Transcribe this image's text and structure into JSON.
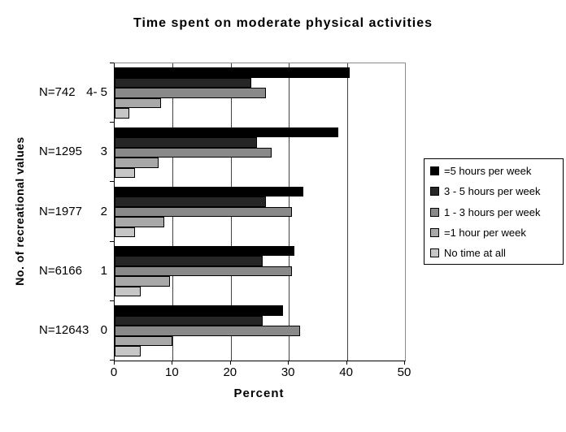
{
  "title": "Time spent on moderate physical activities",
  "chart_data": {
    "type": "bar",
    "orientation": "horizontal",
    "title": "Time spent on moderate physical activities",
    "xlabel": "Percent",
    "ylabel": "No. of recreational values",
    "xlim": [
      0,
      50
    ],
    "xticks": [
      0,
      10,
      20,
      30,
      40,
      50
    ],
    "grid": true,
    "legend_position": "right",
    "categories": [
      "N=742  4- 5",
      "N=1295  3",
      "N=1977  2",
      "N=6166  1",
      "N=12643  0"
    ],
    "category_labels": [
      {
        "n": "N=742",
        "value": "4- 5"
      },
      {
        "n": "N=1295",
        "value": "3"
      },
      {
        "n": "N=1977",
        "value": "2"
      },
      {
        "n": "N=6166",
        "value": "1"
      },
      {
        "n": "N=12643",
        "value": "0"
      }
    ],
    "series": [
      {
        "name": "=5 hours per week",
        "color": "#000000",
        "values": [
          40.5,
          38.5,
          32.5,
          31,
          29
        ]
      },
      {
        "name": "3 - 5 hours per week",
        "color": "#262626",
        "values": [
          23.5,
          24.5,
          26,
          25.5,
          25.5
        ]
      },
      {
        "name": "1 - 3 hours per week",
        "color": "#898989",
        "values": [
          26,
          27,
          30.5,
          30.5,
          32
        ]
      },
      {
        "name": "=1 hour per week",
        "color": "#a8a8a8",
        "values": [
          8,
          7.5,
          8.5,
          9.5,
          10
        ]
      },
      {
        "name": "No time at all",
        "color": "#c6c6c6",
        "values": [
          2.5,
          3.5,
          3.5,
          4.5,
          4.5
        ]
      }
    ]
  }
}
